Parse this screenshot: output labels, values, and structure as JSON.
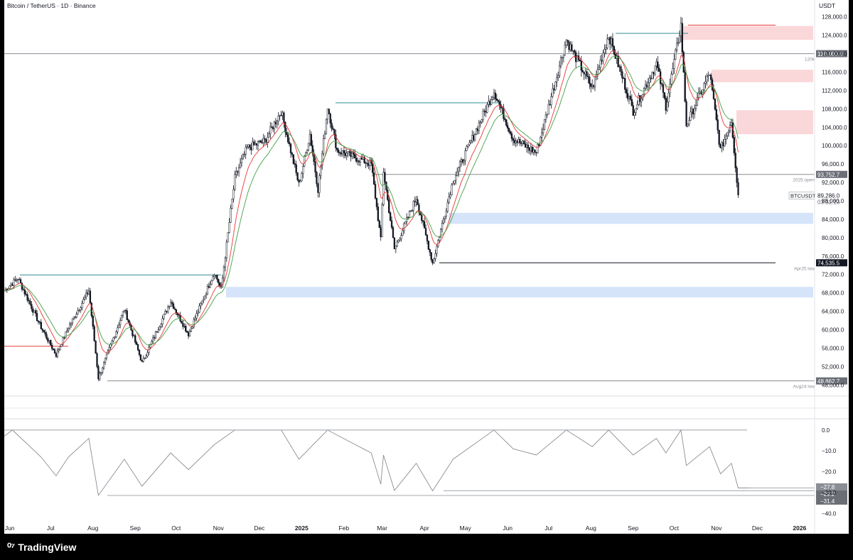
{
  "header": {
    "title": "Bitcoin / TetherUS · 1D · Binance",
    "currency": "USDT"
  },
  "brand": {
    "name": "TradingView",
    "icon": "tradingview-logo-icon"
  },
  "colors": {
    "up": "#ffffff",
    "down": "#131722",
    "ema_fast": "#e53935",
    "ema_slow": "#43a047",
    "supply_zone": "#f8c9cc",
    "demand_zone": "#c7dbf7",
    "level_teal": "#2f8f8f"
  },
  "chart_data": [
    {
      "type": "candlestick",
      "symbol": "BTCUSDT",
      "timeframe": "1D",
      "exchange": "Binance",
      "title": "Bitcoin / TetherUS · 1D · Binance",
      "x_ticks": [
        "Jun",
        "Jul",
        "Aug",
        "Sep",
        "Oct",
        "Nov",
        "Dec",
        "2025",
        "Feb",
        "Mar",
        "Apr",
        "May",
        "Jun",
        "Jul",
        "Aug",
        "Sep",
        "Oct",
        "Nov",
        "Dec",
        "2026"
      ],
      "x_range": [
        "2024-05-28",
        "2026-01-12"
      ],
      "y_ticks": [
        "128,000.0",
        "124,000.0",
        "120,000.0",
        "116,000.0",
        "112,000.0",
        "108,000.0",
        "104,000.0",
        "100,000.0",
        "96,000.0",
        "92,000.0",
        "88,000.0",
        "84,000.0",
        "80,000.0",
        "76,000.0",
        "72,000.0",
        "68,000.0",
        "64,000.0",
        "60,000.0",
        "56,000.0",
        "52,000.0",
        "48,000.0"
      ],
      "y_range": [
        46500,
        129500
      ],
      "price_path": [
        [
          "2024-05-28",
          68500
        ],
        [
          "2024-06-07",
          71200
        ],
        [
          "2024-06-24",
          60500
        ],
        [
          "2024-07-05",
          54500
        ],
        [
          "2024-07-14",
          60500
        ],
        [
          "2024-07-29",
          68500
        ],
        [
          "2024-08-05",
          49500
        ],
        [
          "2024-08-24",
          64500
        ],
        [
          "2024-09-06",
          52800
        ],
        [
          "2024-09-27",
          66200
        ],
        [
          "2024-10-10",
          59000
        ],
        [
          "2024-10-29",
          72500
        ],
        [
          "2024-11-03",
          68800
        ],
        [
          "2024-11-13",
          93000
        ],
        [
          "2024-11-22",
          99500
        ],
        [
          "2024-12-05",
          101000
        ],
        [
          "2024-12-17",
          107500
        ],
        [
          "2024-12-30",
          91500
        ],
        [
          "2025-01-07",
          102500
        ],
        [
          "2025-01-13",
          90500
        ],
        [
          "2025-01-20",
          108500
        ],
        [
          "2025-01-27",
          99000
        ],
        [
          "2025-02-21",
          96000
        ],
        [
          "2025-02-28",
          79500
        ],
        [
          "2025-03-02",
          94500
        ],
        [
          "2025-03-10",
          77500
        ],
        [
          "2025-03-26",
          88700
        ],
        [
          "2025-04-07",
          74500
        ],
        [
          "2025-04-22",
          92500
        ],
        [
          "2025-05-22",
          111800
        ],
        [
          "2025-06-05",
          101500
        ],
        [
          "2025-06-22",
          98500
        ],
        [
          "2025-07-14",
          123000
        ],
        [
          "2025-08-02",
          112500
        ],
        [
          "2025-08-14",
          124100
        ],
        [
          "2025-09-01",
          107500
        ],
        [
          "2025-09-18",
          117800
        ],
        [
          "2025-09-25",
          108600
        ],
        [
          "2025-10-06",
          126200
        ],
        [
          "2025-10-10",
          104500
        ],
        [
          "2025-10-27",
          115800
        ],
        [
          "2025-11-04",
          99000
        ],
        [
          "2025-11-12",
          105500
        ],
        [
          "2025-11-17",
          89286
        ]
      ],
      "moving_averages": [
        "fast",
        "slow"
      ],
      "horizontal_levels": [
        {
          "price": 120000.0,
          "price_label": "120,000.0",
          "note": "120k",
          "style": "solid-gray"
        },
        {
          "price": 93752.7,
          "price_label": "93,752.7",
          "note": "2025 open",
          "style": "solid-gray"
        },
        {
          "price": 74535.5,
          "price_label": "74,535.5",
          "note": "Apr25 low",
          "style": "solid-dark"
        },
        {
          "price": 48862.7,
          "price_label": "48,862.7",
          "note": "Aug24 low",
          "style": "solid-gray"
        }
      ],
      "zones": [
        {
          "kind": "supply",
          "from": 123000,
          "to": 126000
        },
        {
          "kind": "supply",
          "from": 113800,
          "to": 116500
        },
        {
          "kind": "supply",
          "from": 102500,
          "to": 107700
        },
        {
          "kind": "demand",
          "from": 83000,
          "to": 85400
        },
        {
          "kind": "demand",
          "from": 67000,
          "to": 69300
        }
      ],
      "last_price": {
        "symbol": "BTCUSDT",
        "price": 89286.0,
        "price_label": "89,286.0",
        "countdown": "03:31:13"
      }
    },
    {
      "type": "line",
      "title": "",
      "y_ticks": [
        "0.0",
        "−10.0",
        "−20.0",
        "−30.0",
        "−40.0"
      ],
      "y_range": [
        -44,
        2
      ],
      "x_range": [
        "2024-05-28",
        "2026-01-12"
      ],
      "path": [
        [
          "2024-05-28",
          -3
        ],
        [
          "2024-06-03",
          0
        ],
        [
          "2024-06-24",
          -13
        ],
        [
          "2024-07-05",
          -22
        ],
        [
          "2024-07-14",
          -13
        ],
        [
          "2024-07-29",
          -4
        ],
        [
          "2024-08-05",
          -31.4
        ],
        [
          "2024-08-24",
          -14
        ],
        [
          "2024-09-06",
          -27
        ],
        [
          "2024-09-27",
          -11
        ],
        [
          "2024-10-10",
          -19
        ],
        [
          "2024-10-29",
          -7
        ],
        [
          "2024-11-13",
          0
        ],
        [
          "2024-12-17",
          0
        ],
        [
          "2024-12-30",
          -14
        ],
        [
          "2025-01-20",
          0
        ],
        [
          "2025-02-21",
          -11
        ],
        [
          "2025-02-28",
          -26
        ],
        [
          "2025-03-02",
          -12
        ],
        [
          "2025-03-10",
          -29
        ],
        [
          "2025-03-26",
          -16
        ],
        [
          "2025-04-07",
          -29.2
        ],
        [
          "2025-04-22",
          -14
        ],
        [
          "2025-05-22",
          0
        ],
        [
          "2025-06-05",
          -9
        ],
        [
          "2025-06-22",
          -12
        ],
        [
          "2025-07-14",
          0
        ],
        [
          "2025-08-02",
          -8
        ],
        [
          "2025-08-14",
          0
        ],
        [
          "2025-09-01",
          -12
        ],
        [
          "2025-09-18",
          -4
        ],
        [
          "2025-09-25",
          -11
        ],
        [
          "2025-10-06",
          0
        ],
        [
          "2025-10-10",
          -17
        ],
        [
          "2025-10-27",
          -8
        ],
        [
          "2025-11-04",
          -21
        ],
        [
          "2025-11-12",
          -16
        ],
        [
          "2025-11-17",
          -27.8
        ],
        [
          "2025-11-27",
          -27.8
        ]
      ],
      "reference_lines": [
        {
          "value": 0.0
        },
        {
          "value": -29.2
        },
        {
          "value": -31.4
        }
      ],
      "value_badges": [
        "−27.8",
        "−29.2",
        "−31.4"
      ]
    }
  ]
}
